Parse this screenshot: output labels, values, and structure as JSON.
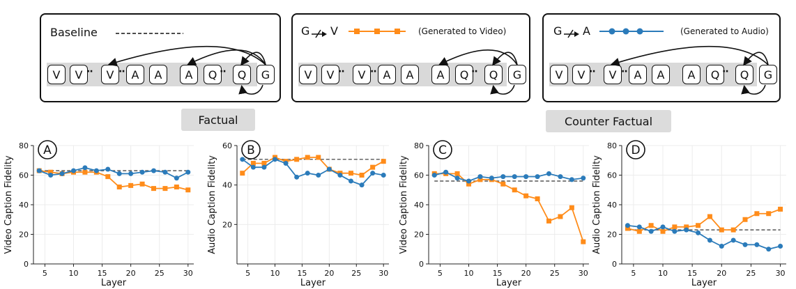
{
  "colors": {
    "orange": "#ff8c1a",
    "blue": "#2b7bba",
    "grid": "#ececec",
    "dash": "#555555",
    "strip": "#d9d9d9"
  },
  "diagrams": [
    {
      "title": "Baseline",
      "legend_kind": "dashed",
      "note": "",
      "tokens": [
        "V",
        "V",
        "V",
        "A",
        "A",
        "A",
        "Q",
        "Q",
        "G"
      ],
      "dots": [
        "··",
        "··",
        "··"
      ],
      "arrow_targets": [
        "V",
        "A",
        "Q"
      ]
    },
    {
      "title": "G",
      "blocked": "V",
      "legend_kind": "orange",
      "note": "(Generated to Video)",
      "tokens": [
        "V",
        "V",
        "V",
        "A",
        "A",
        "A",
        "Q",
        "Q",
        "G"
      ],
      "dots": [
        "··",
        "··",
        "··"
      ],
      "arrow_targets": [
        "A",
        "Q"
      ]
    },
    {
      "title": "G",
      "blocked": "A",
      "legend_kind": "blue",
      "note": "(Generated to Audio)",
      "tokens": [
        "V",
        "V",
        "V",
        "A",
        "A",
        "A",
        "Q",
        "Q",
        "G"
      ],
      "dots": [
        "··",
        "··",
        "··"
      ],
      "arrow_targets": [
        "V",
        "Q"
      ]
    }
  ],
  "section_labels": {
    "factual": "Factual",
    "counterfactual": "Counter Factual"
  },
  "chart_data": [
    {
      "type": "line",
      "panel": "A",
      "xlabel": "Layer",
      "ylabel": "Video Caption Fidelity",
      "ylim": [
        0,
        80
      ],
      "yticks": [
        0,
        20,
        40,
        60,
        80
      ],
      "xlim": [
        3,
        31
      ],
      "xticks": [
        5,
        10,
        15,
        20,
        25,
        30
      ],
      "baseline": 63,
      "series": [
        {
          "name": "Generated to Video",
          "color": "orange",
          "marker": "square",
          "x": [
            4,
            6,
            8,
            10,
            12,
            14,
            16,
            18,
            20,
            22,
            24,
            26,
            28,
            30
          ],
          "y": [
            63,
            62,
            61,
            62,
            62,
            62,
            59,
            52,
            53,
            54,
            51,
            51,
            52,
            50
          ]
        },
        {
          "name": "Generated to Audio",
          "color": "blue",
          "marker": "circle",
          "x": [
            4,
            6,
            8,
            10,
            12,
            14,
            16,
            18,
            20,
            22,
            24,
            26,
            28,
            30
          ],
          "y": [
            63,
            60,
            61,
            63,
            65,
            63,
            64,
            61,
            61,
            62,
            63,
            62,
            58,
            62
          ]
        }
      ]
    },
    {
      "type": "line",
      "panel": "B",
      "xlabel": "Layer",
      "ylabel": "Audio Caption Fidelity",
      "ylim": [
        0,
        60
      ],
      "yticks": [
        20,
        40,
        60
      ],
      "xlim": [
        3,
        31
      ],
      "xticks": [
        5,
        10,
        15,
        20,
        25,
        30
      ],
      "baseline": 53,
      "series": [
        {
          "name": "Generated to Video",
          "color": "orange",
          "marker": "square",
          "x": [
            4,
            6,
            8,
            10,
            12,
            14,
            16,
            18,
            20,
            22,
            24,
            26,
            28,
            30
          ],
          "y": [
            46,
            51,
            51,
            54,
            52,
            53,
            54,
            54,
            48,
            46,
            46,
            45,
            49,
            52
          ]
        },
        {
          "name": "Generated to Audio",
          "color": "blue",
          "marker": "circle",
          "x": [
            4,
            6,
            8,
            10,
            12,
            14,
            16,
            18,
            20,
            22,
            24,
            26,
            28,
            30
          ],
          "y": [
            53,
            49,
            49,
            53,
            51,
            44,
            46,
            45,
            48,
            45,
            42,
            40,
            46,
            45
          ]
        }
      ]
    },
    {
      "type": "line",
      "panel": "C",
      "xlabel": "Layer",
      "ylabel": "Video Caption Fidelity",
      "ylim": [
        0,
        80
      ],
      "yticks": [
        0,
        20,
        40,
        60,
        80
      ],
      "xlim": [
        3,
        31
      ],
      "xticks": [
        5,
        10,
        15,
        20,
        25,
        30
      ],
      "baseline": 56,
      "series": [
        {
          "name": "Generated to Video",
          "color": "orange",
          "marker": "square",
          "x": [
            4,
            6,
            8,
            10,
            12,
            14,
            16,
            18,
            20,
            22,
            24,
            26,
            28,
            30
          ],
          "y": [
            61,
            61,
            61,
            54,
            57,
            57,
            54,
            50,
            46,
            44,
            29,
            32,
            38,
            15
          ]
        },
        {
          "name": "Generated to Audio",
          "color": "blue",
          "marker": "circle",
          "x": [
            4,
            6,
            8,
            10,
            12,
            14,
            16,
            18,
            20,
            22,
            24,
            26,
            28,
            30
          ],
          "y": [
            60,
            62,
            58,
            56,
            59,
            58,
            59,
            59,
            59,
            59,
            61,
            59,
            57,
            58
          ]
        }
      ]
    },
    {
      "type": "line",
      "panel": "D",
      "xlabel": "Layer",
      "ylabel": "Audio Caption Fidelity",
      "ylim": [
        0,
        80
      ],
      "yticks": [
        0,
        20,
        40,
        60,
        80
      ],
      "xlim": [
        3,
        31
      ],
      "xticks": [
        5,
        10,
        15,
        20,
        25,
        30
      ],
      "baseline": 23,
      "series": [
        {
          "name": "Generated to Video",
          "color": "orange",
          "marker": "square",
          "x": [
            4,
            6,
            8,
            10,
            12,
            14,
            16,
            18,
            20,
            22,
            24,
            26,
            28,
            30
          ],
          "y": [
            24,
            22,
            26,
            22,
            25,
            25,
            26,
            32,
            23,
            23,
            30,
            34,
            34,
            37
          ]
        },
        {
          "name": "Generated to Audio",
          "color": "blue",
          "marker": "circle",
          "x": [
            4,
            6,
            8,
            10,
            12,
            14,
            16,
            18,
            20,
            22,
            24,
            26,
            28,
            30
          ],
          "y": [
            26,
            25,
            22,
            25,
            22,
            23,
            21,
            16,
            12,
            16,
            13,
            13,
            10,
            12
          ]
        }
      ]
    }
  ]
}
